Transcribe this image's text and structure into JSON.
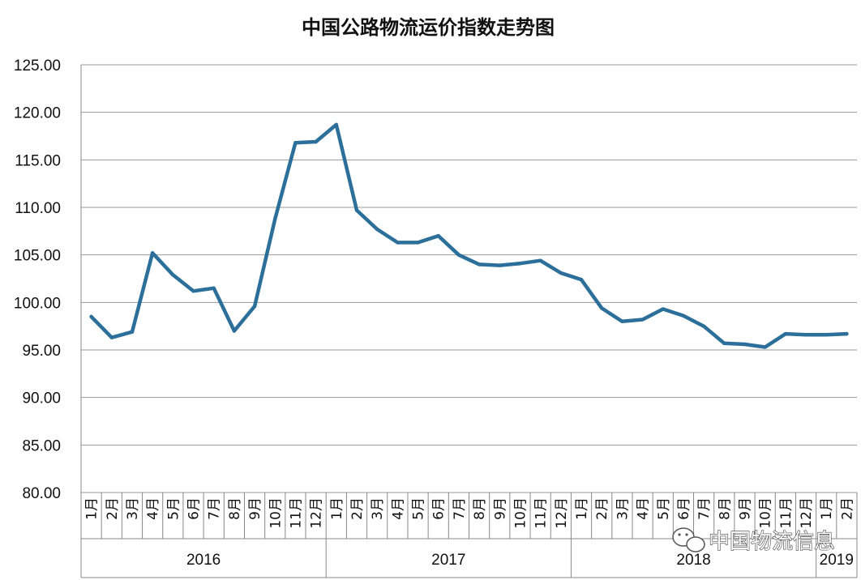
{
  "chart_data": {
    "type": "line",
    "title": "中国公路物流运价指数走势图",
    "xlabel": "",
    "ylabel": "",
    "ylim": [
      80,
      125
    ],
    "y_ticks": [
      "80.00",
      "85.00",
      "90.00",
      "95.00",
      "100.00",
      "105.00",
      "110.00",
      "115.00",
      "120.00",
      "125.00"
    ],
    "grid": "horizontal",
    "legend": "none",
    "line_color": "#2b6f9a",
    "years": [
      {
        "label": "2016",
        "months": 12
      },
      {
        "label": "2017",
        "months": 12
      },
      {
        "label": "2018",
        "months": 12
      },
      {
        "label": "2019",
        "months": 2
      }
    ],
    "categories": [
      "1月",
      "2月",
      "3月",
      "4月",
      "5月",
      "6月",
      "7月",
      "8月",
      "9月",
      "10月",
      "11月",
      "12月",
      "1月",
      "2月",
      "3月",
      "4月",
      "5月",
      "6月",
      "7月",
      "8月",
      "9月",
      "10月",
      "11月",
      "12月",
      "1月",
      "2月",
      "3月",
      "4月",
      "5月",
      "6月",
      "7月",
      "8月",
      "9月",
      "10月",
      "11月",
      "12月",
      "1月",
      "2月"
    ],
    "series": [
      {
        "values": [
          98.5,
          96.3,
          96.9,
          105.2,
          102.9,
          101.2,
          101.5,
          97.0,
          99.6,
          108.8,
          116.8,
          116.9,
          118.7,
          109.7,
          107.7,
          106.3,
          106.3,
          107.0,
          105.0,
          104.0,
          103.9,
          104.1,
          104.4,
          103.1,
          102.4,
          99.4,
          98.0,
          98.2,
          99.3,
          98.6,
          97.5,
          95.7,
          95.6,
          95.3,
          96.7,
          96.6,
          96.6,
          96.7
        ]
      }
    ]
  },
  "watermark": {
    "text": "中国物流信息",
    "icon": "wechat-icon"
  }
}
